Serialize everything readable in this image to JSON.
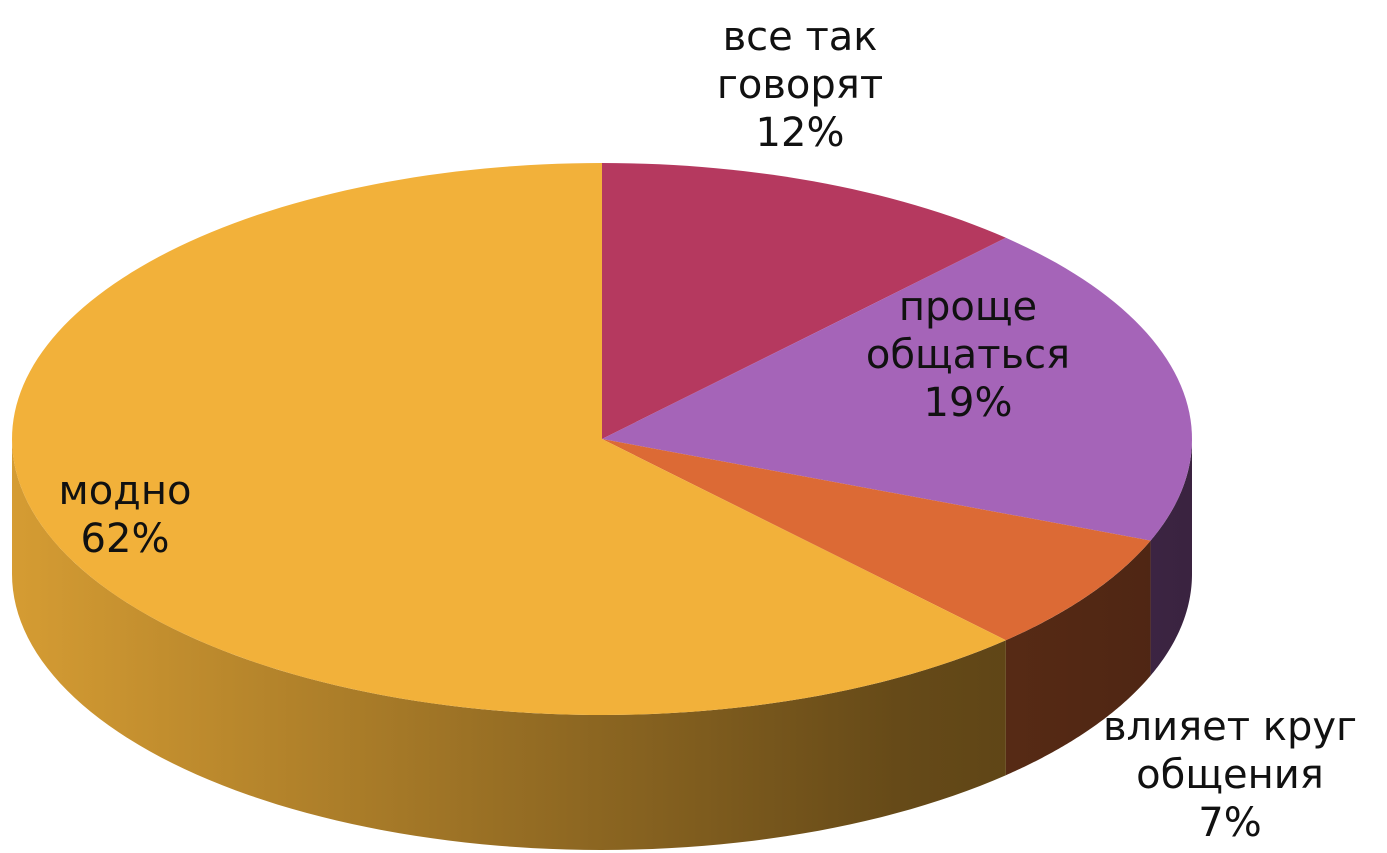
{
  "chart_data": {
    "type": "pie",
    "categories": [
      "все так говорят",
      "проще общаться",
      "влияет круг общения",
      "модно"
    ],
    "values": [
      12,
      19,
      7,
      62
    ],
    "value_labels": [
      "12%",
      "19%",
      "7%",
      "62%"
    ],
    "colors": [
      "#b5395f",
      "#a564b8",
      "#dc6a35",
      "#f2b13a"
    ]
  }
}
